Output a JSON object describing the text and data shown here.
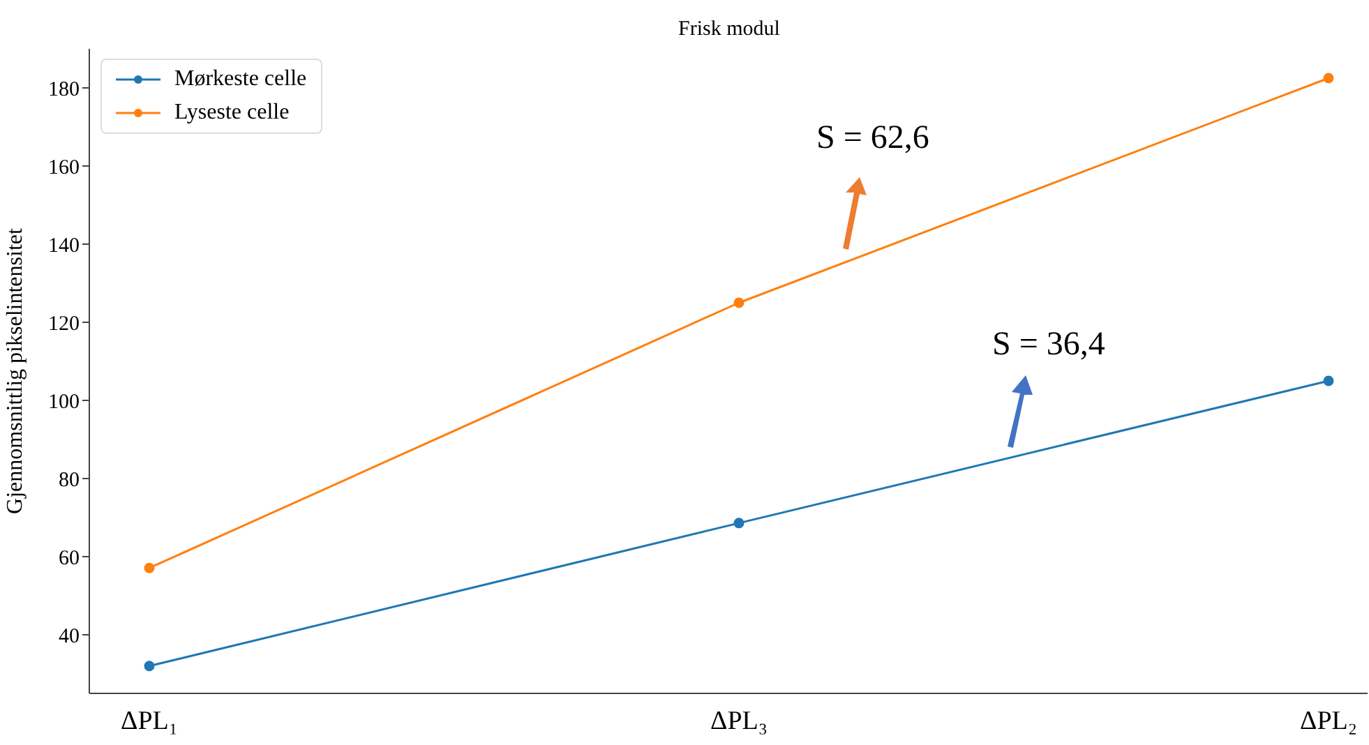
{
  "chart_data": {
    "type": "line",
    "title": "Frisk modul",
    "ylabel": "Gjennomsnittlig pikselintensitet",
    "categories": [
      "ΔPL₁",
      "ΔPL₃",
      "ΔPL₂"
    ],
    "series": [
      {
        "name": "Mørkeste celle",
        "color": "#1f77b4",
        "values": [
          32,
          68.6,
          105
        ]
      },
      {
        "name": "Lyseste celle",
        "color": "#ff7f0e",
        "values": [
          57.1,
          125,
          182.5
        ]
      }
    ],
    "ylim": [
      25,
      190
    ],
    "yticks": [
      40,
      60,
      80,
      100,
      120,
      140,
      160,
      180
    ],
    "annotations": [
      "S = 62,6",
      "S = 36,4"
    ],
    "legend": "top left",
    "grid": false,
    "marker": "circle",
    "line_style": "solid"
  }
}
